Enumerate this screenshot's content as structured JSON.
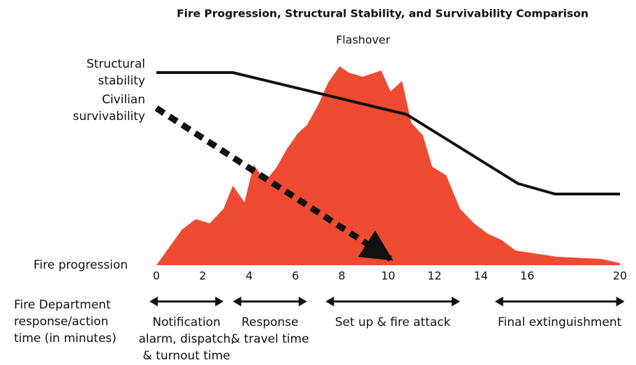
{
  "chart_data": {
    "type": "line",
    "title": "Fire Progression, Structural Stability, and Survivability Comparison",
    "annotation": "Flashover",
    "x_label": "Fire Department\nresponse/action\ntime (in minutes)",
    "xlim": [
      0,
      20
    ],
    "ylim": [
      0,
      100
    ],
    "xticks": [
      0,
      2,
      4,
      6,
      8,
      10,
      12,
      14,
      16,
      20
    ],
    "series": [
      {
        "name": "Structural\nstability",
        "color": "#111111",
        "style": "solid",
        "x": [
          0,
          3.3,
          10.8,
          15.6,
          17.2,
          20
        ],
        "values": [
          92,
          92,
          72,
          39,
          34,
          34
        ]
      },
      {
        "name": "Civilian\nsurvivability",
        "color": "#111111",
        "style": "dashed-arrow",
        "x": [
          0,
          10.1
        ],
        "values": [
          75,
          3
        ]
      },
      {
        "name": "Fire progression",
        "color": "#ef4a32",
        "style": "area",
        "x": [
          0,
          1.1,
          1.7,
          2.3,
          2.9,
          3.3,
          3.8,
          4.2,
          4.7,
          5.2,
          5.6,
          6.1,
          6.5,
          7.0,
          7.4,
          7.9,
          8.3,
          8.9,
          9.7,
          10.1,
          10.6,
          11.0,
          11.5,
          11.9,
          12.5,
          13.1,
          13.7,
          14.3,
          14.9,
          15.5,
          17.3,
          19.2,
          20
        ],
        "values": [
          0,
          17,
          22,
          20,
          27,
          38,
          30,
          48,
          40,
          47,
          55,
          63,
          67,
          77,
          87,
          95,
          92,
          90,
          93,
          83,
          88,
          68,
          62,
          47,
          43,
          27,
          20,
          15,
          12,
          7,
          4,
          3,
          1
        ]
      }
    ],
    "phases": [
      {
        "start": -0.3,
        "end": 2.9,
        "label": "Notification\nalarm, dispatch,\n& turnout time"
      },
      {
        "start": 3.3,
        "end": 6.5,
        "label": "Response\n& travel time"
      },
      {
        "start": 7.3,
        "end": 13.1,
        "label": "Set up & fire attack"
      },
      {
        "start": 14.6,
        "end": 20.2,
        "label": "Final extinguishment"
      }
    ]
  }
}
